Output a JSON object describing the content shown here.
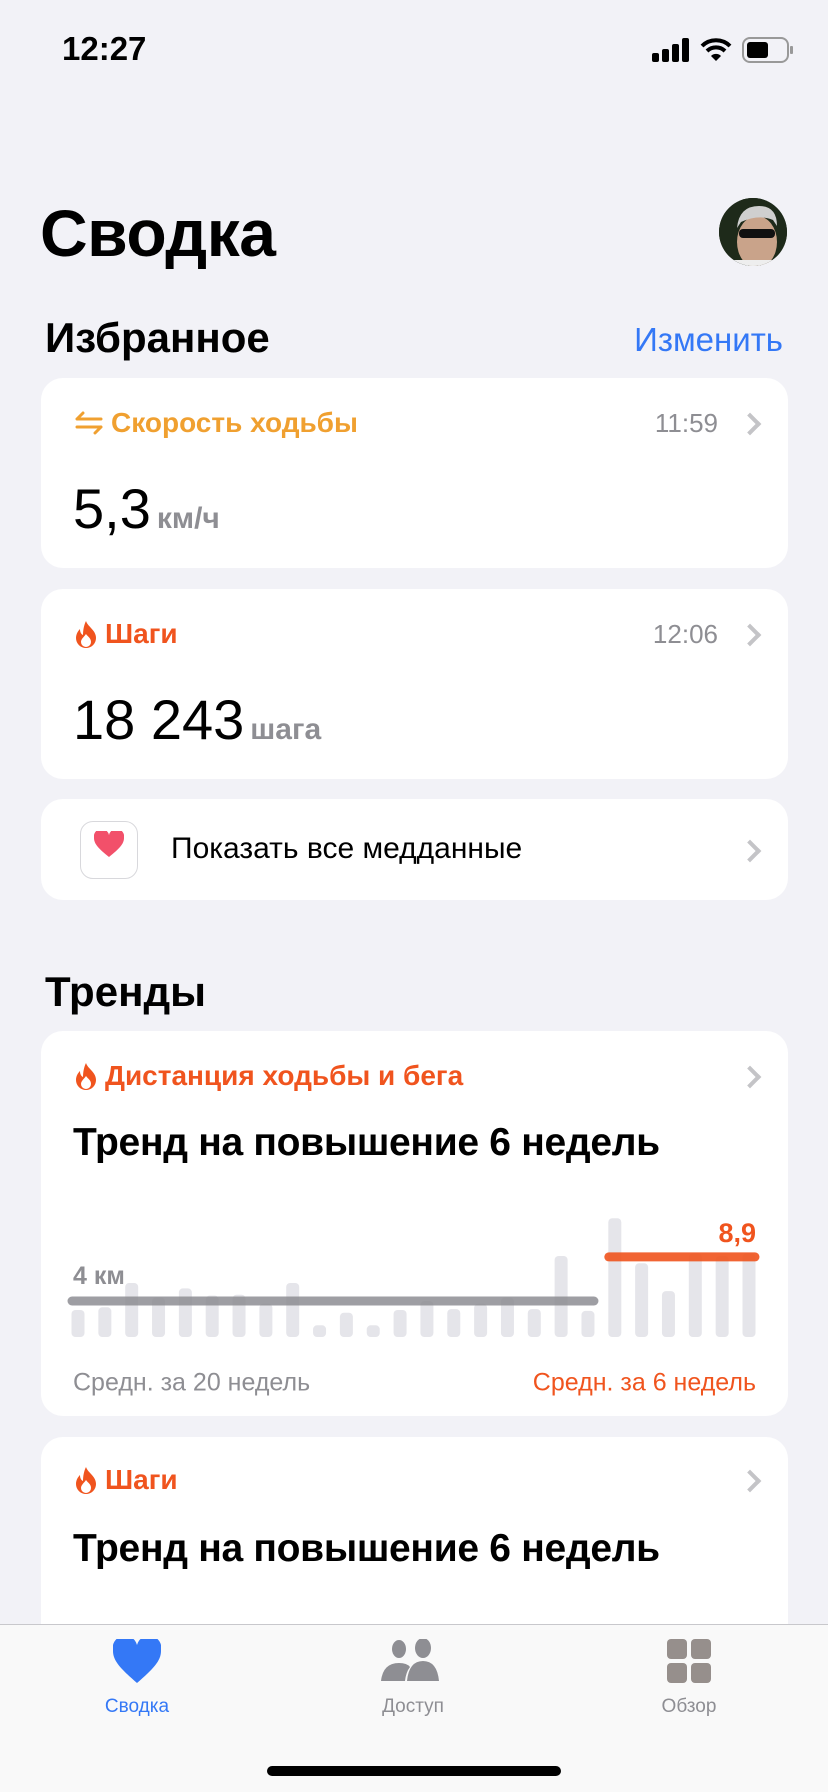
{
  "status": {
    "time": "12:27"
  },
  "header": {
    "title": "Сводка"
  },
  "favorites": {
    "heading": "Избранное",
    "edit_label": "Изменить",
    "items": [
      {
        "label": "Скорость ходьбы",
        "time": "11:59",
        "value": "5,3",
        "unit": "км/ч",
        "color": "#f0a030",
        "icon": "arrows-exchange-icon"
      },
      {
        "label": "Шаги",
        "time": "12:06",
        "value": "18 243",
        "unit": "шага",
        "color": "#f0541e",
        "icon": "flame-icon"
      }
    ],
    "show_all_label": "Показать все медданные"
  },
  "trends": {
    "heading": "Тренды",
    "items": [
      {
        "label": "Дистанция ходьбы и бега",
        "title": "Тренд на повышение 6 недель"
      },
      {
        "label": "Шаги",
        "title": "Тренд на повышение 6 недель"
      }
    ]
  },
  "chart_data": {
    "type": "bar",
    "unit": "км",
    "values": [
      3.0,
      3.3,
      6.0,
      4.4,
      5.4,
      4.6,
      4.7,
      3.7,
      6.0,
      1.3,
      2.7,
      1.3,
      3.0,
      4.0,
      3.1,
      3.7,
      4.4,
      3.1,
      9.0,
      2.9,
      13.2,
      8.2,
      5.1,
      9.3,
      9.0,
      9.3
    ],
    "avg_long": {
      "value": 4,
      "label": "4 км",
      "caption": "Средн. за 20 недель",
      "weeks": 20,
      "color": "#8e8e93"
    },
    "avg_short": {
      "value": 8.9,
      "label": "8,9",
      "caption": "Средн. за 6 недель",
      "weeks": 6,
      "color": "#f0541e"
    },
    "bar_color": "#e5e5ea"
  },
  "tabbar": {
    "items": [
      {
        "label": "Сводка",
        "active": true
      },
      {
        "label": "Доступ"
      },
      {
        "label": "Обзор"
      }
    ],
    "accent": "#3478f6"
  }
}
